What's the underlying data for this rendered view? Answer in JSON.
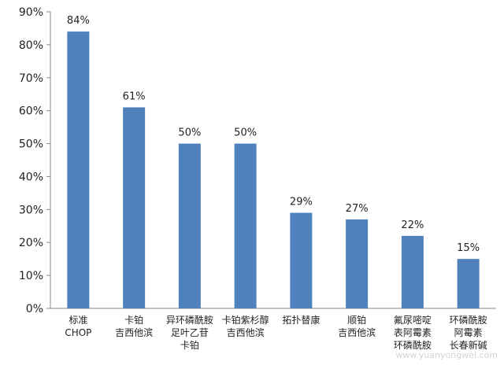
{
  "chart_data": {
    "type": "bar",
    "title": "",
    "xlabel": "",
    "ylabel": "",
    "ylim": [
      0,
      90
    ],
    "yticks": [
      "0%",
      "10%",
      "20%",
      "30%",
      "40%",
      "50%",
      "60%",
      "70%",
      "80%",
      "90%"
    ],
    "grid": false,
    "legend": "none",
    "bar_color": "#4F81BD",
    "categories": [
      [
        "标准",
        "CHOP"
      ],
      [
        "卡铂",
        "吉西他滨"
      ],
      [
        "异环磷酰胺",
        "足叶乙苷",
        "卡铂"
      ],
      [
        "卡铂紫杉醇",
        "吉西他滨"
      ],
      [
        "拓扑替康"
      ],
      [
        "顺铂",
        "吉西他滨"
      ],
      [
        "氟尿嘧啶",
        "表阿霉素",
        "环磷酰胺"
      ],
      [
        "环磷酰胺",
        "阿霉素",
        "长春新碱"
      ]
    ],
    "values": [
      84,
      61,
      50,
      50,
      29,
      27,
      22,
      15
    ],
    "value_labels": [
      "84%",
      "61%",
      "50%",
      "50%",
      "29%",
      "27%",
      "22%",
      "15%"
    ]
  },
  "watermark": "www.yuanyongwei.com"
}
